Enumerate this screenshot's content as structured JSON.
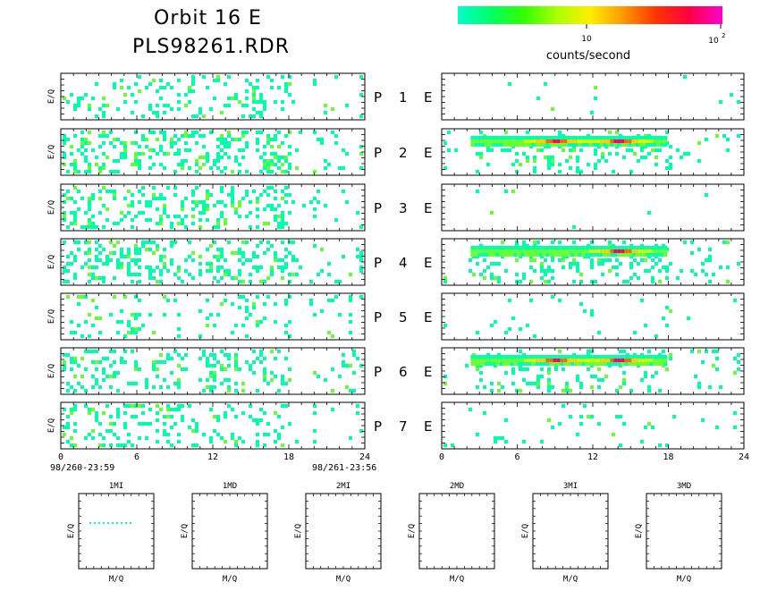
{
  "header": {
    "title_line1": "Orbit 16 E",
    "title_line2": "PLS98261.RDR"
  },
  "colorbar": {
    "label": "counts/second",
    "tick_10": "10",
    "tick_100_base": "10",
    "tick_100_exp": "2",
    "stops": [
      "#00ffcc",
      "#00ff66",
      "#33ff00",
      "#aaff00",
      "#ffee00",
      "#ff9900",
      "#ff3300",
      "#ff0044",
      "#ff00cc"
    ]
  },
  "colors": {
    "low": "#00ffaa",
    "mid": "#66ff33",
    "hi1": "#ccff00",
    "hi2": "#ffcc00",
    "hi3": "#ff6600",
    "hi4": "#ff0066"
  },
  "chart_data": {
    "type": "heatmap",
    "ylabel": "E/Q",
    "xlim": [
      0,
      24
    ],
    "x_ticks": [
      "0",
      "6",
      "12",
      "18",
      "24"
    ],
    "time_start": "98/260-23:59",
    "time_end": "98/261-23:56",
    "rows": [
      {
        "label": "P",
        "num": "1",
        "right": "E"
      },
      {
        "label": "P",
        "num": "2",
        "right": "E"
      },
      {
        "label": "P",
        "num": "3",
        "right": "E"
      },
      {
        "label": "P",
        "num": "4",
        "right": "E"
      },
      {
        "label": "P",
        "num": "5",
        "right": "E"
      },
      {
        "label": "P",
        "num": "6",
        "right": "E"
      },
      {
        "label": "P",
        "num": "7",
        "right": "E"
      }
    ],
    "left_density": [
      0.18,
      0.3,
      0.25,
      0.3,
      0.12,
      0.22,
      0.2
    ],
    "right_density": [
      0.01,
      0.18,
      0.01,
      0.22,
      0.03,
      0.15,
      0.06
    ],
    "right_bands": [
      {
        "row": 1,
        "x_from": 2.3,
        "x_to": 17.8,
        "peaks": [
          9,
          14
        ]
      },
      {
        "row": 3,
        "x_from": 2.3,
        "x_to": 17.8,
        "peaks": [
          14
        ]
      },
      {
        "row": 5,
        "x_from": 2.3,
        "x_to": 17.8,
        "peaks": [
          9,
          14
        ]
      }
    ],
    "bottom_panels": [
      {
        "title": "1MI",
        "xlabel": "M/Q",
        "ylabel": "E/Q"
      },
      {
        "title": "1MD",
        "xlabel": "M/Q",
        "ylabel": "E/Q"
      },
      {
        "title": "2MI",
        "xlabel": "M/Q",
        "ylabel": "E/Q"
      },
      {
        "title": "2MD",
        "xlabel": "M/Q",
        "ylabel": "E/Q"
      },
      {
        "title": "3MI",
        "xlabel": "M/Q",
        "ylabel": "E/Q"
      },
      {
        "title": "3MD",
        "xlabel": "M/Q",
        "ylabel": "E/Q"
      }
    ]
  }
}
